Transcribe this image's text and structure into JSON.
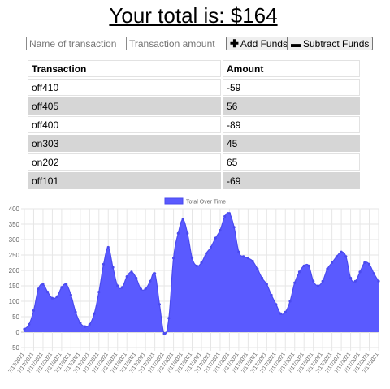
{
  "header": {
    "title": "Your total is: $164"
  },
  "form": {
    "name_placeholder": "Name of transaction",
    "amount_placeholder": "Transaction amount",
    "add_label": "Add Funds",
    "subtract_label": "Subtract Funds",
    "add_icon": "plus-icon",
    "subtract_icon": "minus-icon"
  },
  "table": {
    "headers": [
      "Transaction",
      "Amount"
    ],
    "rows": [
      [
        "off410",
        "-59"
      ],
      [
        "off405",
        "56"
      ],
      [
        "off400",
        "-89"
      ],
      [
        "on303",
        "45"
      ],
      [
        "on202",
        "65"
      ],
      [
        "off101",
        "-69"
      ]
    ]
  },
  "colors": {
    "series": "#5a5aff",
    "alt_row": "#d6d6d6"
  },
  "chart_data": {
    "type": "area",
    "legend": [
      "Total Over Time"
    ],
    "legend_position": "top-center",
    "ylim": [
      -50,
      400
    ],
    "yticks": [
      -50,
      0,
      50,
      100,
      150,
      200,
      250,
      300,
      350,
      400
    ],
    "grid": true,
    "x_label_text": "7/17/2021",
    "series": [
      {
        "name": "Total Over Time",
        "values": [
          10,
          25,
          70,
          140,
          155,
          130,
          110,
          115,
          145,
          155,
          120,
          65,
          30,
          18,
          25,
          60,
          130,
          220,
          275,
          210,
          150,
          145,
          180,
          195,
          175,
          140,
          140,
          165,
          190,
          90,
          -5,
          45,
          240,
          320,
          365,
          320,
          240,
          215,
          225,
          255,
          275,
          305,
          330,
          375,
          385,
          340,
          260,
          245,
          240,
          230,
          205,
          175,
          155,
          120,
          90,
          60,
          65,
          100,
          160,
          195,
          215,
          215,
          165,
          150,
          165,
          205,
          225,
          245,
          260,
          245,
          175,
          165,
          195,
          225,
          220,
          190,
          165
        ]
      }
    ]
  }
}
